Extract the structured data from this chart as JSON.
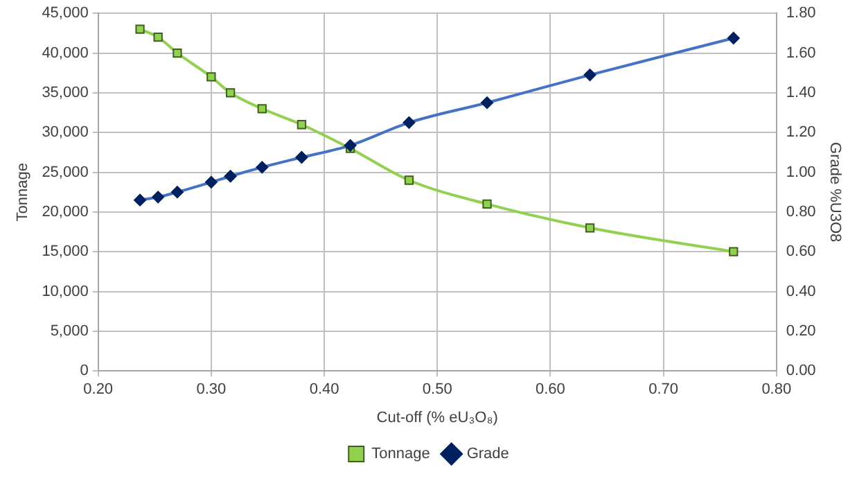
{
  "chart_data": {
    "type": "line",
    "xlabel": "Cut-off (% eU₃O₈)",
    "ylabel": "Tonnage",
    "y2label": "Grade %U3O8",
    "series": [
      {
        "name": "Tonnage",
        "color": "#92d050",
        "marker": "square",
        "x": [
          0.237,
          0.253,
          0.27,
          0.3,
          0.317,
          0.345,
          0.38,
          0.423,
          0.475,
          0.544,
          0.635,
          0.762
        ],
        "values": [
          43000,
          42000,
          40000,
          37000,
          35000,
          33000,
          31000,
          28000,
          24000,
          21000,
          18000,
          15000
        ]
      },
      {
        "name": "Grade",
        "color": "#4472c4",
        "marker": "diamond",
        "axis": "y2",
        "x": [
          0.237,
          0.253,
          0.27,
          0.3,
          0.317,
          0.345,
          0.38,
          0.423,
          0.475,
          0.544,
          0.635,
          0.762
        ],
        "values": [
          0.86,
          0.875,
          0.9,
          0.95,
          0.98,
          1.025,
          1.075,
          1.135,
          1.25,
          1.35,
          1.49,
          1.675
        ]
      }
    ],
    "xlim": [
      0.2,
      0.8
    ],
    "xticks": [
      {
        "value": 0.2,
        "label": "0.20"
      },
      {
        "value": 0.3,
        "label": "0.30"
      },
      {
        "value": 0.4,
        "label": "0.40"
      },
      {
        "value": 0.5,
        "label": "0.50"
      },
      {
        "value": 0.6,
        "label": "0.60"
      },
      {
        "value": 0.7,
        "label": "0.70"
      },
      {
        "value": 0.8,
        "label": "0.80"
      }
    ],
    "ylim": [
      0,
      45000
    ],
    "yticks": [
      0,
      {
        "value": 5000,
        "label": "5,000"
      },
      {
        "value": 10000,
        "label": "10,000"
      },
      {
        "value": 15000,
        "label": "15,000"
      },
      {
        "value": 20000,
        "label": "20,000"
      },
      {
        "value": 25000,
        "label": "25,000"
      },
      {
        "value": 30000,
        "label": "30,000"
      },
      {
        "value": 35000,
        "label": "35,000"
      },
      {
        "value": 40000,
        "label": "40,000"
      },
      {
        "value": 45000,
        "label": "45,000"
      }
    ],
    "y2lim": [
      0,
      1.8
    ],
    "y2ticks": [
      {
        "value": 0,
        "label": "0.00"
      },
      {
        "value": 0.2,
        "label": "0.20"
      },
      {
        "value": 0.4,
        "label": "0.40"
      },
      {
        "value": 0.6,
        "label": "0.60"
      },
      {
        "value": 0.8,
        "label": "0.80"
      },
      {
        "value": 1.0,
        "label": "1.00"
      },
      {
        "value": 1.2,
        "label": "1.20"
      },
      {
        "value": 1.4,
        "label": "1.40"
      },
      {
        "value": 1.6,
        "label": "1.60"
      },
      {
        "value": 1.8,
        "label": "1.80"
      }
    ],
    "grid": true,
    "legend": "bottom",
    "line_style": "solid"
  }
}
